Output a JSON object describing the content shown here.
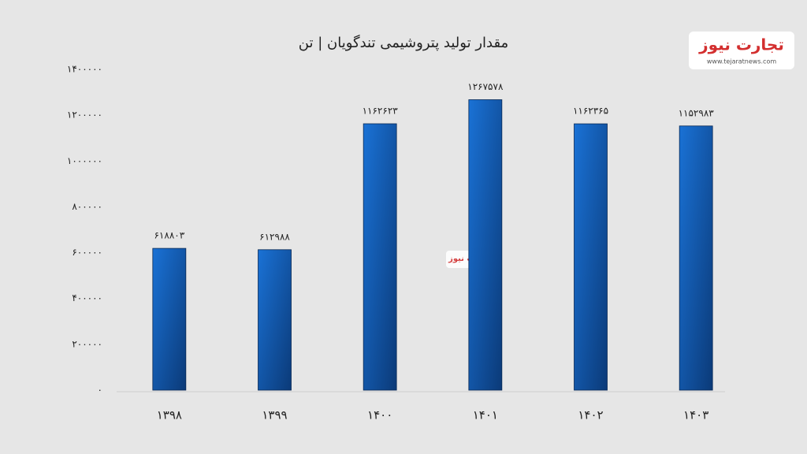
{
  "chart_data": {
    "type": "bar",
    "title": "مقدار تولید پتروشیمی تندگویان | تن",
    "categories": [
      "۱۳۹۸",
      "۱۳۹۹",
      "۱۴۰۰",
      "۱۴۰۱",
      "۱۴۰۲",
      "۱۴۰۳"
    ],
    "values": [
      618803,
      612988,
      1162623,
      1267578,
      1162365,
      1152983
    ],
    "value_labels": [
      "۶۱۸۸۰۳",
      "۶۱۲۹۸۸",
      "۱۱۶۲۶۲۳",
      "۱۲۶۷۵۷۸",
      "۱۱۶۲۳۶۵",
      "۱۱۵۲۹۸۳"
    ],
    "color": "#1a72d6",
    "ylim": [
      0,
      1400000
    ],
    "yticks": [
      {
        "value": 0,
        "label": "۰"
      },
      {
        "value": 200000,
        "label": "۲۰۰۰۰۰"
      },
      {
        "value": 400000,
        "label": "۴۰۰۰۰۰"
      },
      {
        "value": 600000,
        "label": "۶۰۰۰۰۰"
      },
      {
        "value": 800000,
        "label": "۸۰۰۰۰۰"
      },
      {
        "value": 1000000,
        "label": "۱۰۰۰۰۰۰"
      },
      {
        "value": 1200000,
        "label": "۱۲۰۰۰۰۰"
      },
      {
        "value": 1400000,
        "label": "۱۴۰۰۰۰۰"
      }
    ],
    "grid": false,
    "logo": {
      "name": "تجارت نیوز",
      "url": "www.tejaratnews.com"
    }
  }
}
